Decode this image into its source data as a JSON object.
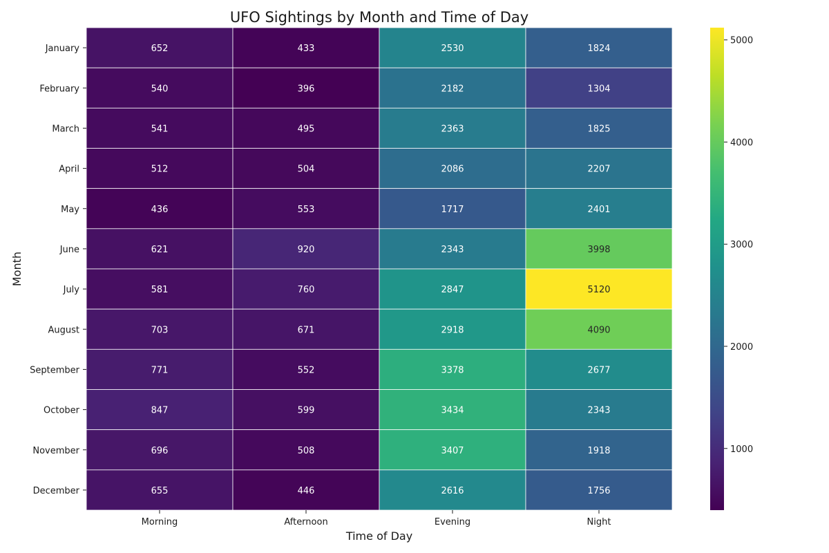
{
  "chart_data": {
    "type": "heatmap",
    "title": "UFO Sightings by Month and Time of Day",
    "xlabel": "Time of Day",
    "ylabel": "Month",
    "x_categories": [
      "Morning",
      "Afternoon",
      "Evening",
      "Night"
    ],
    "y_categories": [
      "January",
      "February",
      "March",
      "April",
      "May",
      "June",
      "July",
      "August",
      "September",
      "October",
      "November",
      "December"
    ],
    "values": [
      [
        652,
        433,
        2530,
        1824
      ],
      [
        540,
        396,
        2182,
        1304
      ],
      [
        541,
        495,
        2363,
        1825
      ],
      [
        512,
        504,
        2086,
        2207
      ],
      [
        436,
        553,
        1717,
        2401
      ],
      [
        621,
        920,
        2343,
        3998
      ],
      [
        581,
        760,
        2847,
        5120
      ],
      [
        703,
        671,
        2918,
        4090
      ],
      [
        771,
        552,
        3378,
        2677
      ],
      [
        847,
        599,
        3434,
        2343
      ],
      [
        696,
        508,
        3407,
        1918
      ],
      [
        655,
        446,
        2616,
        1756
      ]
    ],
    "colormap": "viridis",
    "colorbar": {
      "min": 396,
      "max": 5120,
      "ticks": [
        1000,
        2000,
        3000,
        4000,
        5000
      ]
    },
    "annotations": true,
    "grid": false
  }
}
